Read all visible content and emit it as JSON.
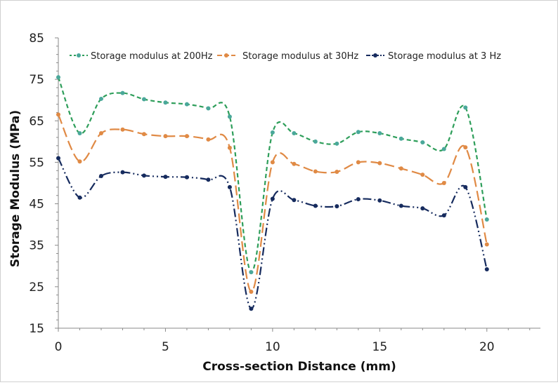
{
  "chart_data": {
    "type": "line",
    "title": "",
    "xlabel": "Cross-section Distance (mm)",
    "ylabel": "Storage Modulus (MPa)",
    "xlim": [
      0,
      22.5
    ],
    "ylim": [
      15,
      85
    ],
    "xticks": [
      0,
      5,
      10,
      15,
      20
    ],
    "yticks": [
      15,
      25,
      35,
      45,
      55,
      65,
      75,
      85
    ],
    "legend_position": "top",
    "x": [
      0,
      1,
      2,
      3,
      4,
      5,
      6,
      7,
      8,
      9,
      10,
      11,
      12,
      13,
      14,
      15,
      16,
      17,
      18,
      19,
      20
    ],
    "series": [
      {
        "name": "Storage modulus at 200Hz",
        "color": "#2e9e5a",
        "marker_color": "#4aa89a",
        "dash": "6,4",
        "values": [
          75.5,
          62.0,
          70.3,
          71.7,
          70.2,
          69.4,
          69.0,
          68.0,
          66.0,
          28.5,
          62.2,
          62.0,
          60.0,
          59.5,
          62.3,
          62.0,
          60.7,
          59.8,
          58.2,
          68.2,
          41.2
        ]
      },
      {
        "name": "Storage modulus at 30Hz",
        "color": "#e08a45",
        "marker_color": "#e08a45",
        "dash": "14,6",
        "values": [
          66.5,
          55.2,
          62.0,
          62.9,
          61.8,
          61.3,
          61.3,
          60.5,
          58.5,
          23.8,
          55.0,
          54.6,
          52.8,
          52.7,
          55.0,
          54.8,
          53.5,
          52.0,
          50.0,
          58.6,
          35.2
        ]
      },
      {
        "name": "Storage modulus at 3 Hz",
        "color": "#162b5e",
        "marker_color": "#162b5e",
        "dash": "12,4,2,4,2,4",
        "values": [
          56.0,
          46.5,
          51.7,
          52.6,
          51.8,
          51.5,
          51.4,
          50.8,
          49.0,
          19.7,
          46.2,
          45.9,
          44.5,
          44.4,
          46.1,
          45.8,
          44.5,
          43.9,
          42.2,
          49.0,
          29.2
        ]
      }
    ]
  }
}
